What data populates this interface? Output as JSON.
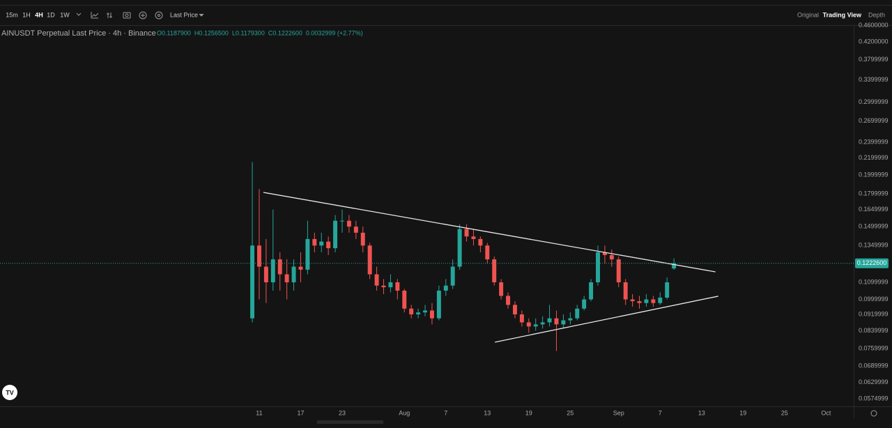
{
  "toolbar": {
    "intervals": [
      "15m",
      "1H",
      "4H",
      "1D",
      "1W"
    ],
    "active_interval": "4H",
    "price_mode": "Last Price",
    "views": [
      "Original",
      "Trading View",
      "Depth"
    ],
    "active_view": "Trading View"
  },
  "header": {
    "symbol": "AINUSDT Perpetual Last Price · 4h · Binance",
    "ohlc": [
      "O0.1187900",
      "H0.1256500",
      "L0.1179300",
      "C0.1222600"
    ],
    "change": "0.0032999 (+2.77%)"
  },
  "chart_data": {
    "type": "candlestick",
    "log_scale": true,
    "grid": false,
    "up_color": "#26a69a",
    "down_color": "#ef5350",
    "x": [
      192,
      193,
      194,
      195,
      196,
      197,
      198,
      199,
      200,
      201,
      202,
      203,
      204,
      205,
      206,
      207,
      208,
      209,
      210,
      211,
      212,
      213,
      214,
      215,
      216,
      217,
      218,
      219,
      220,
      221,
      222,
      223,
      224,
      225,
      226,
      227,
      228,
      229,
      230,
      231,
      232,
      233,
      234,
      235,
      236,
      237,
      238,
      239,
      240,
      241,
      242,
      243,
      244,
      245,
      246,
      247,
      248,
      249,
      250,
      251,
      252,
      253
    ],
    "open": [
      0.09,
      0.135,
      0.12,
      0.11,
      0.125,
      0.115,
      0.11,
      0.12,
      0.118,
      0.14,
      0.135,
      0.138,
      0.133,
      0.155,
      0.155,
      0.15,
      0.145,
      0.135,
      0.115,
      0.108,
      0.107,
      0.11,
      0.105,
      0.095,
      0.092,
      0.093,
      0.094,
      0.09,
      0.105,
      0.108,
      0.12,
      0.148,
      0.142,
      0.14,
      0.135,
      0.125,
      0.11,
      0.102,
      0.097,
      0.092,
      0.088,
      0.086,
      0.087,
      0.088,
      0.09,
      0.087,
      0.089,
      0.09,
      0.095,
      0.1,
      0.11,
      0.13,
      0.128,
      0.125,
      0.11,
      0.1,
      0.099,
      0.098,
      0.1,
      0.098,
      0.101,
      0.11879
    ],
    "high": [
      0.215,
      0.185,
      0.14,
      0.165,
      0.13,
      0.125,
      0.125,
      0.13,
      0.155,
      0.145,
      0.145,
      0.142,
      0.16,
      0.165,
      0.16,
      0.155,
      0.15,
      0.137,
      0.12,
      0.112,
      0.115,
      0.112,
      0.106,
      0.097,
      0.095,
      0.097,
      0.098,
      0.108,
      0.112,
      0.125,
      0.152,
      0.152,
      0.148,
      0.142,
      0.137,
      0.127,
      0.112,
      0.104,
      0.099,
      0.094,
      0.09,
      0.09,
      0.091,
      0.097,
      0.094,
      0.092,
      0.093,
      0.097,
      0.102,
      0.112,
      0.135,
      0.135,
      0.132,
      0.127,
      0.112,
      0.103,
      0.102,
      0.103,
      0.102,
      0.104,
      0.113,
      0.12565
    ],
    "low": [
      0.088,
      0.1,
      0.098,
      0.105,
      0.105,
      0.1,
      0.105,
      0.11,
      0.115,
      0.13,
      0.13,
      0.128,
      0.13,
      0.145,
      0.145,
      0.14,
      0.13,
      0.112,
      0.105,
      0.103,
      0.104,
      0.1,
      0.093,
      0.09,
      0.09,
      0.091,
      0.087,
      0.089,
      0.102,
      0.106,
      0.118,
      0.138,
      0.135,
      0.13,
      0.122,
      0.108,
      0.1,
      0.095,
      0.09,
      0.086,
      0.083,
      0.084,
      0.085,
      0.086,
      0.075,
      0.085,
      0.087,
      0.089,
      0.094,
      0.099,
      0.108,
      0.122,
      0.12,
      0.107,
      0.097,
      0.096,
      0.095,
      0.096,
      0.096,
      0.097,
      0.1,
      0.11793
    ],
    "close": [
      0.135,
      0.12,
      0.11,
      0.125,
      0.115,
      0.11,
      0.12,
      0.118,
      0.14,
      0.135,
      0.138,
      0.133,
      0.155,
      0.155,
      0.15,
      0.145,
      0.135,
      0.115,
      0.108,
      0.107,
      0.11,
      0.105,
      0.095,
      0.092,
      0.093,
      0.094,
      0.09,
      0.105,
      0.108,
      0.12,
      0.148,
      0.142,
      0.14,
      0.135,
      0.125,
      0.11,
      0.102,
      0.097,
      0.092,
      0.088,
      0.086,
      0.087,
      0.088,
      0.09,
      0.087,
      0.089,
      0.09,
      0.095,
      0.1,
      0.11,
      0.13,
      0.128,
      0.125,
      0.11,
      0.1,
      0.099,
      0.098,
      0.1,
      0.098,
      0.101,
      0.11,
      0.12226
    ],
    "xlim": [
      155.5,
      279
    ],
    "xticks": [
      {
        "value": 193,
        "label": "11"
      },
      {
        "value": 199,
        "label": "17"
      },
      {
        "value": 205,
        "label": "23"
      },
      {
        "value": 214,
        "label": "Aug"
      },
      {
        "value": 220,
        "label": "7"
      },
      {
        "value": 226,
        "label": "13"
      },
      {
        "value": 232,
        "label": "19"
      },
      {
        "value": 238,
        "label": "25"
      },
      {
        "value": 245,
        "label": "Sep"
      },
      {
        "value": 251,
        "label": "7"
      },
      {
        "value": 257,
        "label": "13"
      },
      {
        "value": 263,
        "label": "19"
      },
      {
        "value": 269,
        "label": "25"
      },
      {
        "value": 275,
        "label": "Oct"
      }
    ],
    "ylim": [
      0.0551,
      0.461
    ],
    "yticks": [
      {
        "value": 0.46,
        "label": "0.4600000"
      },
      {
        "value": 0.42,
        "label": "0.4200000"
      },
      0.3799999,
      0.3399999,
      0.2999999,
      0.2699999,
      0.2399999,
      0.2199999,
      0.1999999,
      0.1799999,
      0.1649999,
      0.1499999,
      0.1349999,
      0.1099999,
      0.0999999,
      0.0919999,
      0.0839999,
      0.0759999,
      0.0689999,
      0.0629999,
      0.0574999
    ],
    "last_price": {
      "value": 0.12226,
      "label": "0.1222600"
    },
    "trendlines": [
      {
        "x": [
          193.6,
          259.0
        ],
        "y": [
          0.1815,
          0.1166
        ]
      },
      {
        "x": [
          227.1,
          259.4
        ],
        "y": [
          0.0788,
          0.1018
        ]
      }
    ]
  }
}
